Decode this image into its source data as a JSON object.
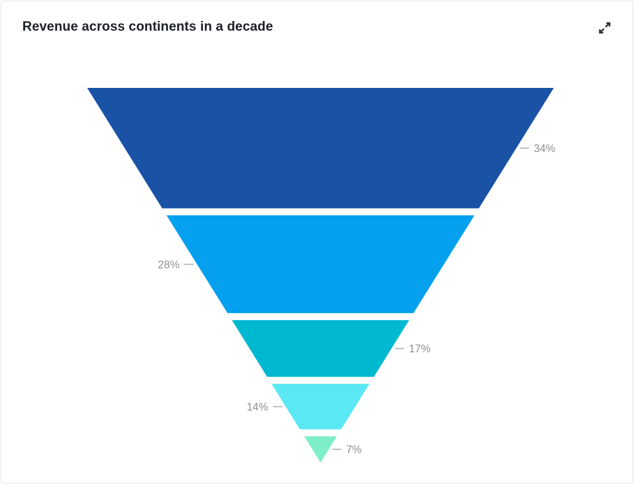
{
  "header": {
    "title": "Revenue across continents in a decade"
  },
  "icons": {
    "expand": "diagonal-expand-arrows"
  },
  "chart_data": {
    "type": "funnel",
    "title": "Revenue across continents in a decade",
    "orientation": "inverted-pyramid",
    "legend": "none",
    "grid": false,
    "label_text_color": "#8e8e8e",
    "connector_color": "#b3b3b3",
    "background_color": "#ffffff",
    "series": [
      {
        "label": "34%",
        "value": 34,
        "color": "#1a52a5",
        "label_side": "right"
      },
      {
        "label": "28%",
        "value": 28,
        "color": "#05a0ee",
        "label_side": "left"
      },
      {
        "label": "17%",
        "value": 17,
        "color": "#00b9d1",
        "label_side": "right"
      },
      {
        "label": "14%",
        "value": 14,
        "color": "#59e8f4",
        "label_side": "left"
      },
      {
        "label": "7%",
        "value": 7,
        "color": "#7eeec8",
        "label_side": "right"
      }
    ]
  }
}
